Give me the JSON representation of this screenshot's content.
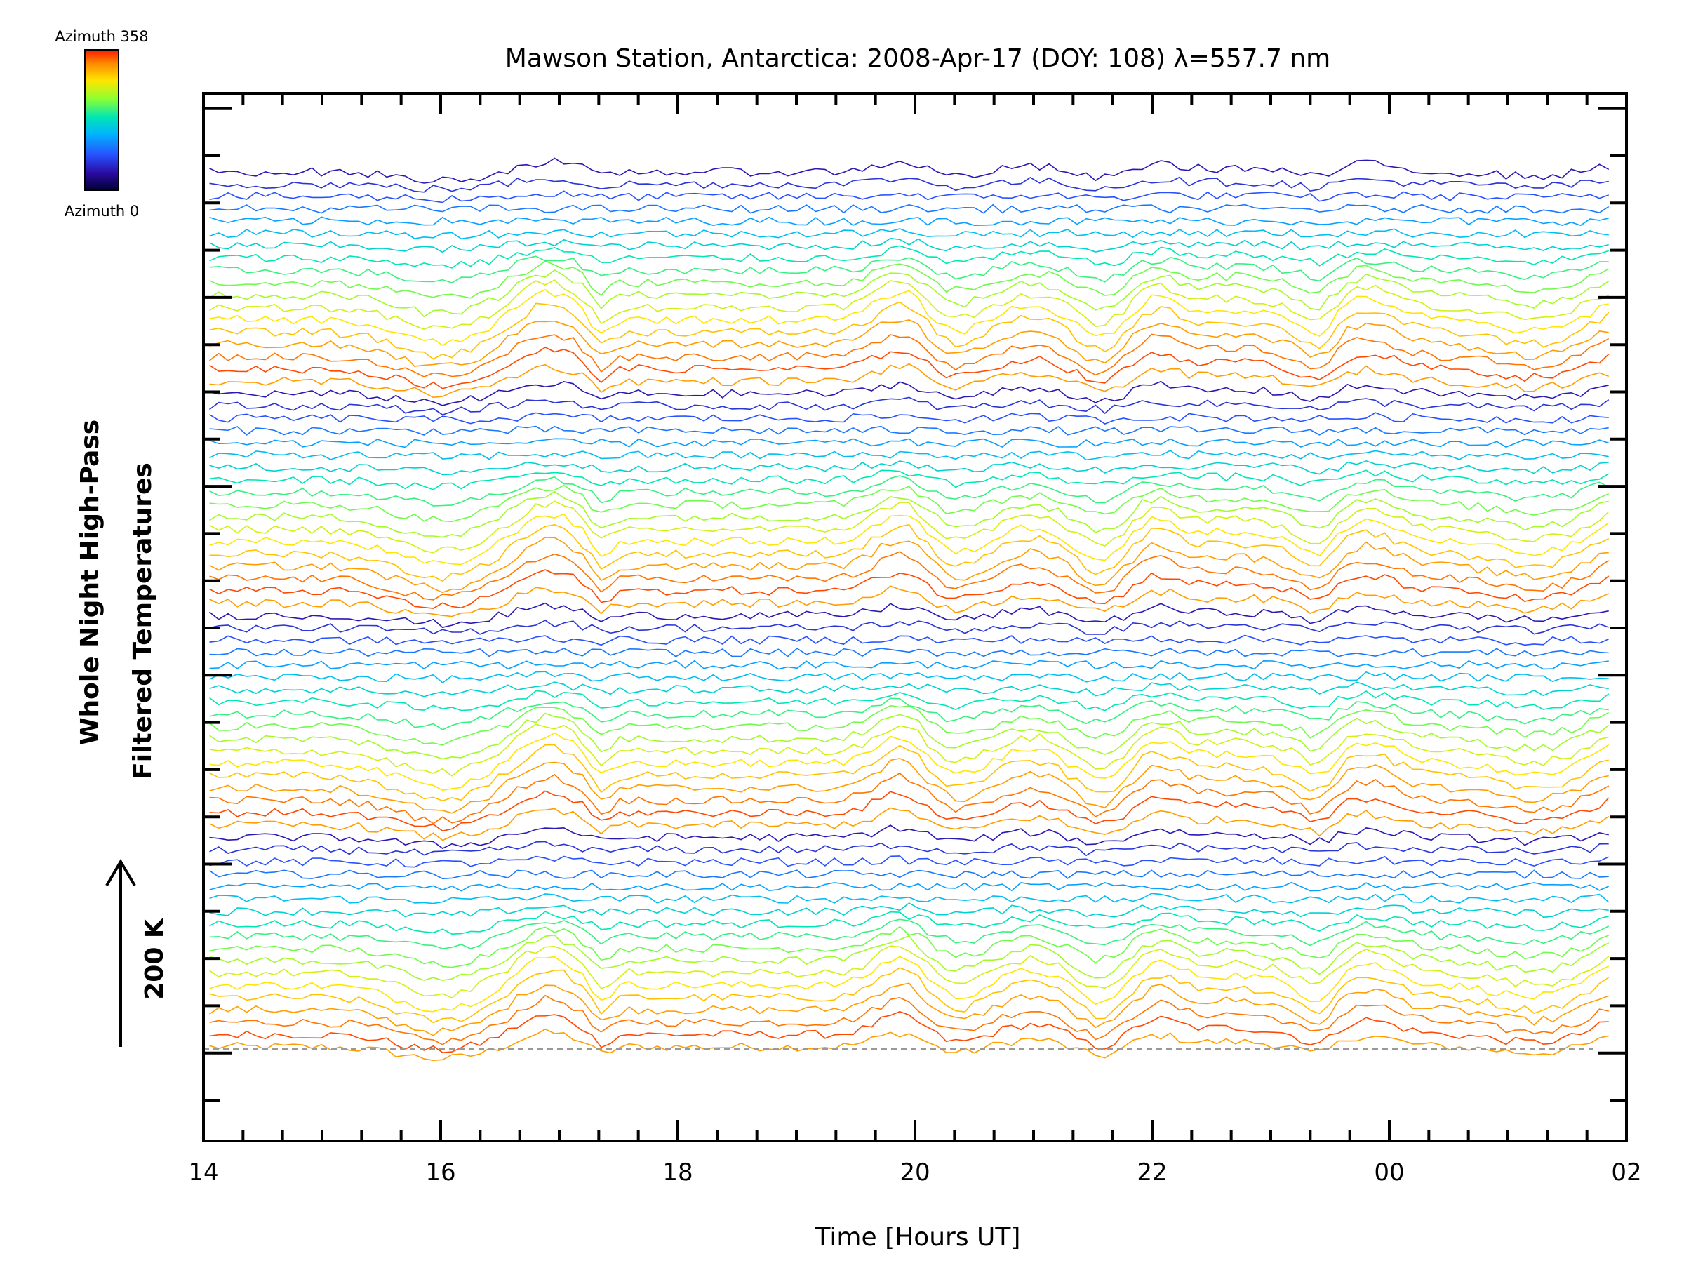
{
  "chart_data": {
    "type": "line",
    "title": "Mawson Station, Antarctica: 2008-Apr-17 (DOY: 108) λ=557.7 nm",
    "xlabel": "Time [Hours UT]",
    "ylabel_line1": "Whole Night High-Pass",
    "ylabel_line2": "Filtered Temperatures",
    "x_ticks": [
      "14",
      "16",
      "18",
      "20",
      "22",
      "00",
      "02"
    ],
    "x_range_hours": [
      14,
      26
    ],
    "scale_bar_label": "200 K",
    "colorbar": {
      "top_label": "Azimuth 358",
      "bottom_label": "Azimuth 0",
      "colors": [
        "#ff1a00",
        "#ff8c00",
        "#ffe600",
        "#8cff32",
        "#00e6b4",
        "#00b4ff",
        "#2850ff",
        "#2a0aa0",
        "#000032"
      ]
    },
    "series_count": 72,
    "series_description": "Stacked azimuth-resolved temperature traces, colour-coded by azimuth",
    "baseline_style": "dashed grey"
  }
}
